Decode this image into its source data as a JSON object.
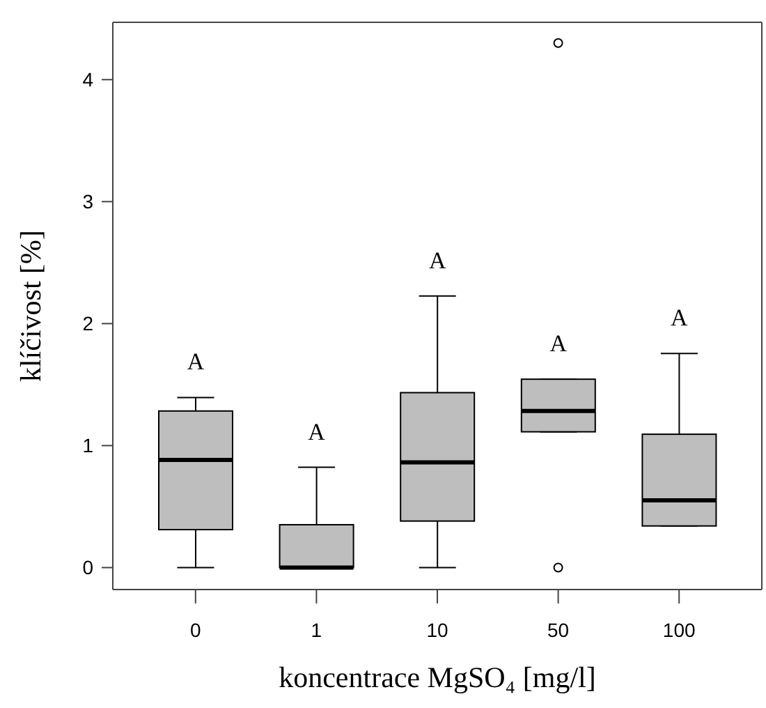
{
  "chart_data": {
    "type": "box",
    "xlabel": "koncentrace MgSO₄ [mg/l]",
    "ylabel": "klíčivost [%]",
    "categories": [
      "0",
      "1",
      "10",
      "50",
      "100"
    ],
    "color": "#bebebe",
    "boxes": [
      {
        "low": 0,
        "q1": 0.31,
        "median": 0.88,
        "q3": 1.28,
        "high": 1.39
      },
      {
        "low": 0,
        "q1": 0,
        "median": 0,
        "q3": 0.35,
        "high": 0.82
      },
      {
        "low": 0,
        "q1": 0.38,
        "median": 0.86,
        "q3": 1.43,
        "high": 2.22
      },
      {
        "low": 1.11,
        "q1": 1.11,
        "median": 1.28,
        "q3": 1.54,
        "high": 1.54,
        "outliers": [
          4.3,
          0
        ]
      },
      {
        "low": 0.34,
        "q1": 0.34,
        "median": 0.55,
        "q3": 1.09,
        "high": 1.75
      }
    ],
    "ylim": [
      -0.18,
      4.47
    ],
    "yticks": [
      0,
      1,
      2,
      3,
      4
    ],
    "annotations": [
      "A",
      "A",
      "A",
      "A",
      "A"
    ]
  }
}
